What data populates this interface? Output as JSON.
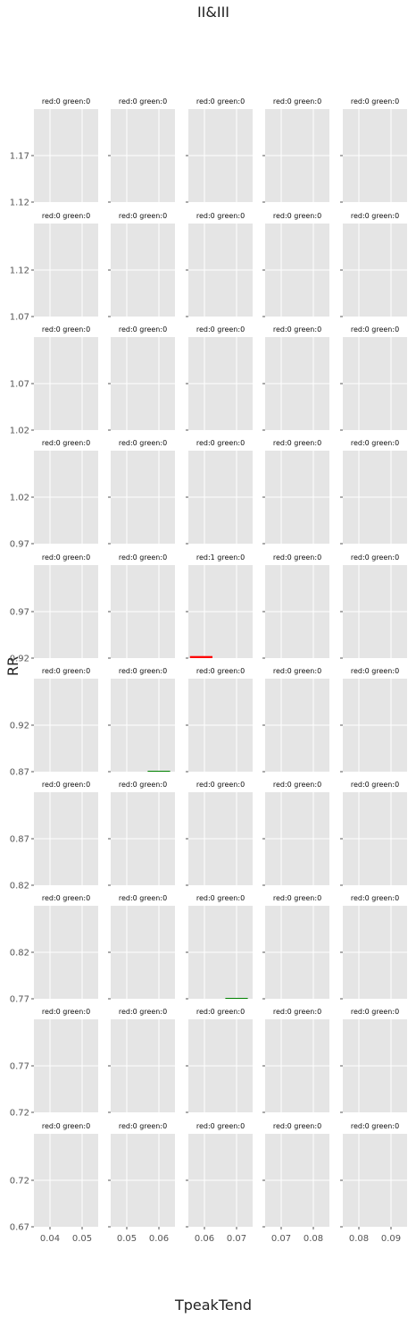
{
  "chart_data": {
    "type": "bar",
    "title": "II&III",
    "xlabel": "TpeakTend",
    "ylabel": "RR",
    "grid": true,
    "columns": [
      {
        "x_ticks": [
          0.04,
          0.05
        ],
        "x_tick_labels": [
          "0.04",
          "0.05"
        ],
        "xlim": [
          0.035,
          0.055
        ]
      },
      {
        "x_ticks": [
          0.05,
          0.06
        ],
        "x_tick_labels": [
          "0.05",
          "0.06"
        ],
        "xlim": [
          0.045,
          0.065
        ]
      },
      {
        "x_ticks": [
          0.06,
          0.07
        ],
        "x_tick_labels": [
          "0.06",
          "0.07"
        ],
        "xlim": [
          0.055,
          0.075
        ]
      },
      {
        "x_ticks": [
          0.07,
          0.08
        ],
        "x_tick_labels": [
          "0.07",
          "0.08"
        ],
        "xlim": [
          0.065,
          0.085
        ]
      },
      {
        "x_ticks": [
          0.08,
          0.09
        ],
        "x_tick_labels": [
          "0.08",
          "0.09"
        ],
        "xlim": [
          0.075,
          0.095
        ]
      }
    ],
    "rows": [
      {
        "ylim": [
          1.12,
          1.22
        ],
        "y_ticks": [
          1.12,
          1.17
        ],
        "y_tick_labels": [
          "1.12",
          "1.17"
        ]
      },
      {
        "ylim": [
          1.07,
          1.17
        ],
        "y_ticks": [
          1.07,
          1.12
        ],
        "y_tick_labels": [
          "1.07",
          "1.12"
        ]
      },
      {
        "ylim": [
          1.02,
          1.12
        ],
        "y_ticks": [
          1.02,
          1.07
        ],
        "y_tick_labels": [
          "1.02",
          "1.07"
        ]
      },
      {
        "ylim": [
          0.97,
          1.07
        ],
        "y_ticks": [
          0.97,
          1.02
        ],
        "y_tick_labels": [
          "0.97",
          "1.02"
        ]
      },
      {
        "ylim": [
          0.92,
          1.02
        ],
        "y_ticks": [
          0.92,
          0.97
        ],
        "y_tick_labels": [
          "0.92",
          "0.97"
        ]
      },
      {
        "ylim": [
          0.87,
          0.97
        ],
        "y_ticks": [
          0.87,
          0.92
        ],
        "y_tick_labels": [
          "0.87",
          "0.92"
        ]
      },
      {
        "ylim": [
          0.82,
          0.92
        ],
        "y_ticks": [
          0.82,
          0.87
        ],
        "y_tick_labels": [
          "0.82",
          "0.87"
        ]
      },
      {
        "ylim": [
          0.77,
          0.87
        ],
        "y_ticks": [
          0.77,
          0.82
        ],
        "y_tick_labels": [
          "0.77",
          "0.82"
        ]
      },
      {
        "ylim": [
          0.72,
          0.82
        ],
        "y_ticks": [
          0.72,
          0.77
        ],
        "y_tick_labels": [
          "0.72",
          "0.77"
        ]
      },
      {
        "ylim": [
          0.67,
          0.77
        ],
        "y_ticks": [
          0.67,
          0.72
        ],
        "y_tick_labels": [
          "0.67",
          "0.72"
        ]
      }
    ],
    "panels": [
      [
        "red:0 green:0",
        "red:0 green:0",
        "red:0 green:0",
        "red:0 green:0",
        "red:0 green:0"
      ],
      [
        "red:0 green:0",
        "red:0 green:0",
        "red:0 green:0",
        "red:0 green:0",
        "red:0 green:0"
      ],
      [
        "red:0 green:0",
        "red:0 green:0",
        "red:0 green:0",
        "red:0 green:0",
        "red:0 green:0"
      ],
      [
        "red:0 green:0",
        "red:0 green:0",
        "red:0 green:0",
        "red:0 green:0",
        "red:0 green:0"
      ],
      [
        "red:0 green:0",
        "red:0 green:0",
        "red:1 green:0",
        "red:0 green:0",
        "red:0 green:0"
      ],
      [
        "red:0 green:0",
        "red:0 green:0",
        "red:0 green:0",
        "red:0 green:0",
        "red:0 green:0"
      ],
      [
        "red:0 green:0",
        "red:0 green:0",
        "red:0 green:0",
        "red:0 green:0",
        "red:0 green:0"
      ],
      [
        "red:0 green:0",
        "red:0 green:0",
        "red:0 green:0",
        "red:0 green:0",
        "red:0 green:0"
      ],
      [
        "red:0 green:0",
        "red:0 green:0",
        "red:0 green:0",
        "red:0 green:0",
        "red:0 green:0"
      ],
      [
        "red:0 green:0",
        "red:0 green:0",
        "red:0 green:0",
        "red:0 green:0",
        "red:0 green:0"
      ]
    ],
    "bars": [
      {
        "row": 4,
        "col": 2,
        "color": "#ff0000",
        "x_start": 0.0555,
        "x_end": 0.0625,
        "y_bottom": 0.92,
        "y_top": 0.9222
      },
      {
        "row": 5,
        "col": 1,
        "color": "#008000",
        "x_start": 0.0565,
        "x_end": 0.0635,
        "y_bottom": 0.87,
        "y_top": 0.8703
      },
      {
        "row": 7,
        "col": 2,
        "color": "#008000",
        "x_start": 0.0665,
        "x_end": 0.0735,
        "y_bottom": 0.77,
        "y_top": 0.7703
      }
    ],
    "colors": {
      "panel_bg": "#e5e5e5",
      "grid": "#ffffff",
      "tick_text": "#555555",
      "red": "#ff0000",
      "green": "#008000"
    }
  }
}
